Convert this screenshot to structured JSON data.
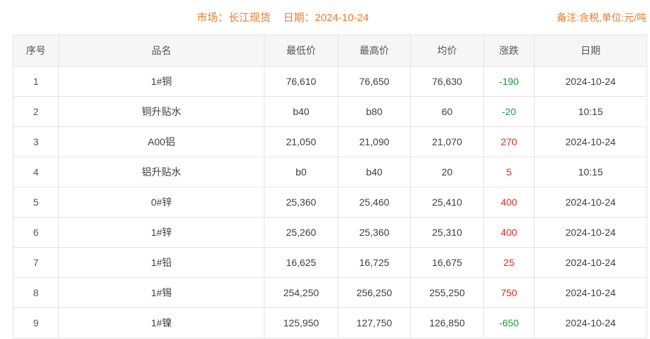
{
  "page": {
    "title_market": "市场：长江现货",
    "title_date": "日期：2024-10-24",
    "note": "备注:含税,单位:元/吨"
  },
  "colors": {
    "accent": "#ef7b2c",
    "up": "#e02b20",
    "down": "#149b3a",
    "header_bg": "#f6f6f6",
    "border": "#e4e4e4"
  },
  "table": {
    "columns": {
      "no": "序号",
      "name": "品名",
      "low": "最低价",
      "high": "最高价",
      "avg": "均价",
      "change": "涨跌",
      "date": "日期"
    },
    "rows": [
      {
        "no": "1",
        "name": "1#铜",
        "low": "76,610",
        "high": "76,650",
        "avg": "76,630",
        "change": "-190",
        "trend": "down",
        "date": "2024-10-24"
      },
      {
        "no": "2",
        "name": "铜升贴水",
        "low": "b40",
        "high": "b80",
        "avg": "60",
        "change": "-20",
        "trend": "down",
        "date": "10:15"
      },
      {
        "no": "3",
        "name": "A00铝",
        "low": "21,050",
        "high": "21,090",
        "avg": "21,070",
        "change": "270",
        "trend": "up",
        "date": "2024-10-24"
      },
      {
        "no": "4",
        "name": "铝升贴水",
        "low": "b0",
        "high": "b40",
        "avg": "20",
        "change": "5",
        "trend": "up",
        "date": "10:15"
      },
      {
        "no": "5",
        "name": "0#锌",
        "low": "25,360",
        "high": "25,460",
        "avg": "25,410",
        "change": "400",
        "trend": "up",
        "date": "2024-10-24"
      },
      {
        "no": "6",
        "name": "1#锌",
        "low": "25,260",
        "high": "25,360",
        "avg": "25,310",
        "change": "400",
        "trend": "up",
        "date": "2024-10-24"
      },
      {
        "no": "7",
        "name": "1#铅",
        "low": "16,625",
        "high": "16,725",
        "avg": "16,675",
        "change": "25",
        "trend": "up",
        "date": "2024-10-24"
      },
      {
        "no": "8",
        "name": "1#锡",
        "low": "254,250",
        "high": "256,250",
        "avg": "255,250",
        "change": "750",
        "trend": "up",
        "date": "2024-10-24"
      },
      {
        "no": "9",
        "name": "1#镍",
        "low": "125,950",
        "high": "127,750",
        "avg": "126,850",
        "change": "-650",
        "trend": "down",
        "date": "2024-10-24"
      }
    ]
  }
}
